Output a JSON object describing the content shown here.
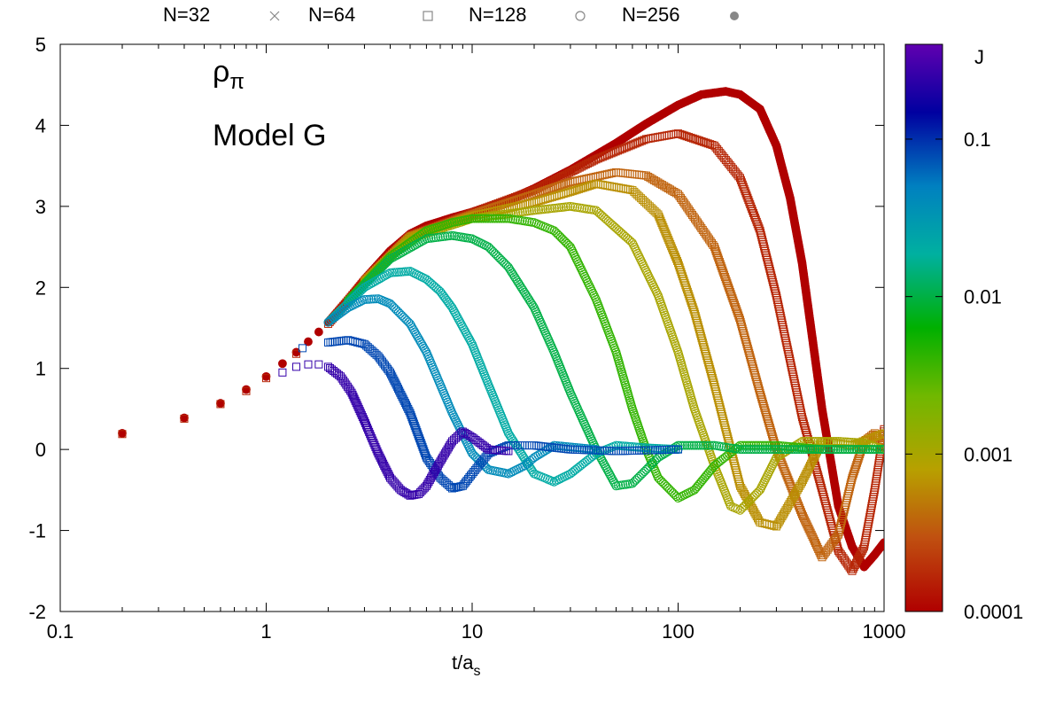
{
  "chart_data": {
    "type": "scatter",
    "title": "",
    "annotations": {
      "symbol": "ρ",
      "symbol_sub": "π",
      "model": "Model G"
    },
    "xlabel": {
      "main": "t/a",
      "sub": "s"
    },
    "ylabel": "",
    "x_scale": "log",
    "xlim": [
      0.1,
      1000
    ],
    "ylim": [
      -2,
      5
    ],
    "x_ticks": [
      {
        "value": 0.1,
        "label": "0.1"
      },
      {
        "value": 1,
        "label": "1"
      },
      {
        "value": 10,
        "label": "10"
      },
      {
        "value": 100,
        "label": "100"
      },
      {
        "value": 1000,
        "label": "1000"
      }
    ],
    "y_ticks": [
      {
        "value": -2,
        "label": "-2"
      },
      {
        "value": -1,
        "label": "-1"
      },
      {
        "value": 0,
        "label": "0"
      },
      {
        "value": 1,
        "label": "1"
      },
      {
        "value": 2,
        "label": "2"
      },
      {
        "value": 3,
        "label": "3"
      },
      {
        "value": 4,
        "label": "4"
      },
      {
        "value": 5,
        "label": "5"
      }
    ],
    "legend": {
      "placement": "top",
      "entries": [
        {
          "label": "N=32",
          "marker": "cross"
        },
        {
          "label": "N=64",
          "marker": "square"
        },
        {
          "label": "N=128",
          "marker": "circle"
        },
        {
          "label": "N=256",
          "marker": "filled-circle"
        }
      ]
    },
    "colorbar": {
      "label": "J",
      "scale": "log",
      "range": [
        0.0001,
        0.4
      ],
      "ticks": [
        {
          "value": 0.1,
          "label": "0.1"
        },
        {
          "value": 0.01,
          "label": "0.01"
        },
        {
          "value": 0.001,
          "label": "0.001"
        },
        {
          "value": 0.0001,
          "label": "0.0001"
        }
      ],
      "colormap": [
        "#b00000",
        "#c06010",
        "#b8a000",
        "#70b800",
        "#00b000",
        "#00b0a0",
        "#0080c0",
        "#0000a0",
        "#6000b0"
      ]
    },
    "series": [
      {
        "J": 0.0001,
        "marker": "filled-circle",
        "x": [
          0.2,
          0.4,
          0.6,
          0.8,
          1,
          1.2,
          1.4,
          1.6,
          1.8,
          2,
          2.5,
          3,
          4,
          5,
          6,
          8,
          10,
          15,
          20,
          30,
          50,
          70,
          100,
          130,
          170,
          200,
          250,
          300,
          350,
          400,
          500,
          600,
          700,
          800,
          900,
          1000
        ],
        "y": [
          0.2,
          0.39,
          0.57,
          0.74,
          0.9,
          1.06,
          1.2,
          1.33,
          1.45,
          1.57,
          1.85,
          2.1,
          2.45,
          2.66,
          2.76,
          2.86,
          2.93,
          3.08,
          3.22,
          3.45,
          3.78,
          4.02,
          4.25,
          4.38,
          4.42,
          4.38,
          4.2,
          3.75,
          3.1,
          2.3,
          0.5,
          -0.7,
          -1.2,
          -1.45,
          -1.3,
          -1.15
        ]
      },
      {
        "J": 0.00015,
        "marker": "square",
        "x": [
          0.2,
          0.4,
          0.6,
          0.8,
          1,
          1.4,
          2,
          3,
          5,
          10,
          20,
          40,
          70,
          100,
          150,
          200,
          250,
          300,
          400,
          500,
          600,
          700,
          800,
          900,
          1000
        ],
        "y": [
          0.19,
          0.38,
          0.56,
          0.72,
          0.88,
          1.18,
          1.55,
          2.08,
          2.64,
          2.92,
          3.2,
          3.58,
          3.83,
          3.9,
          3.75,
          3.35,
          2.7,
          1.9,
          0.4,
          -0.5,
          -1.25,
          -1.5,
          -1.2,
          -0.5,
          0.25
        ]
      },
      {
        "J": 0.0003,
        "marker": "square",
        "x": [
          3,
          5,
          10,
          20,
          30,
          50,
          70,
          100,
          150,
          200,
          250,
          300,
          400,
          500,
          600,
          700,
          800,
          900,
          1000
        ],
        "y": [
          2.08,
          2.63,
          2.9,
          3.15,
          3.3,
          3.42,
          3.38,
          3.15,
          2.5,
          1.6,
          0.7,
          0.0,
          -0.8,
          -1.33,
          -1.05,
          -0.35,
          0.1,
          0.2,
          0.05
        ]
      },
      {
        "J": 0.0006,
        "marker": "square",
        "x": [
          3,
          5,
          10,
          20,
          30,
          40,
          60,
          80,
          100,
          120,
          150,
          200,
          250,
          300,
          400,
          500,
          700,
          1000
        ],
        "y": [
          2.07,
          2.62,
          2.88,
          3.05,
          3.18,
          3.28,
          3.2,
          2.9,
          2.3,
          1.7,
          0.8,
          -0.45,
          -0.9,
          -0.95,
          -0.4,
          0.1,
          0.05,
          0.2
        ]
      },
      {
        "J": 0.001,
        "marker": "circle",
        "x": [
          3,
          5,
          10,
          20,
          30,
          40,
          60,
          80,
          100,
          120,
          150,
          180,
          200,
          250,
          300,
          400,
          600,
          800,
          1000
        ],
        "y": [
          2.06,
          2.6,
          2.85,
          2.95,
          3.0,
          2.95,
          2.55,
          1.9,
          1.2,
          0.5,
          -0.2,
          -0.7,
          -0.75,
          -0.5,
          -0.1,
          0.1,
          0.1,
          0.08,
          0.0
        ]
      },
      {
        "J": 0.004,
        "marker": "circle",
        "x": [
          2.5,
          4,
          6,
          8,
          10,
          15,
          20,
          25,
          30,
          40,
          50,
          60,
          70,
          80,
          100,
          120,
          150,
          200,
          300,
          500,
          1000
        ],
        "y": [
          1.84,
          2.38,
          2.7,
          2.8,
          2.85,
          2.85,
          2.8,
          2.7,
          2.5,
          1.85,
          1.2,
          0.5,
          0.0,
          -0.35,
          -0.6,
          -0.5,
          -0.2,
          0.05,
          0.05,
          0.0,
          0.0
        ]
      },
      {
        "J": 0.01,
        "marker": "circle",
        "x": [
          2.5,
          4,
          6,
          8,
          10,
          12,
          15,
          20,
          25,
          30,
          40,
          50,
          60,
          70,
          80,
          100,
          150,
          200,
          300,
          500,
          1000
        ],
        "y": [
          1.83,
          2.35,
          2.6,
          2.64,
          2.6,
          2.5,
          2.25,
          1.75,
          1.2,
          0.7,
          0.0,
          -0.45,
          -0.42,
          -0.25,
          -0.1,
          0.05,
          0.05,
          0.0,
          0.0,
          0.0,
          0.0
        ]
      },
      {
        "J": 0.02,
        "marker": "circle",
        "x": [
          2,
          3,
          4,
          5,
          6,
          7,
          8,
          10,
          12,
          15,
          20,
          25,
          30,
          40,
          50,
          70,
          100
        ],
        "y": [
          1.57,
          2.0,
          2.18,
          2.2,
          2.1,
          1.95,
          1.75,
          1.3,
          0.8,
          0.2,
          -0.3,
          -0.4,
          -0.3,
          -0.05,
          0.05,
          0.02,
          0.0
        ]
      },
      {
        "J": 0.04,
        "marker": "circle",
        "x": [
          2,
          2.5,
          3,
          3.5,
          4,
          5,
          6,
          7,
          8,
          10,
          12,
          15,
          18,
          20,
          25,
          30,
          40
        ],
        "y": [
          1.57,
          1.75,
          1.85,
          1.86,
          1.8,
          1.55,
          1.2,
          0.8,
          0.45,
          -0.05,
          -0.25,
          -0.3,
          -0.2,
          -0.1,
          0.05,
          0.03,
          0.0
        ]
      },
      {
        "J": 0.08,
        "marker": "square",
        "x": [
          1.5,
          2,
          2.5,
          3,
          3.5,
          4,
          5,
          6,
          7,
          8,
          9,
          10,
          12,
          15,
          20,
          30,
          50,
          100
        ],
        "y": [
          1.25,
          1.32,
          1.35,
          1.3,
          1.15,
          0.95,
          0.45,
          -0.1,
          -0.35,
          -0.48,
          -0.45,
          -0.3,
          -0.05,
          0.05,
          0.05,
          0.0,
          -0.02,
          0.0
        ]
      },
      {
        "J": 0.25,
        "marker": "square",
        "x": [
          1.2,
          1.4,
          1.6,
          1.8,
          2,
          2.3,
          2.6,
          3,
          3.5,
          4,
          4.5,
          5,
          5.5,
          6,
          7,
          8,
          9,
          10,
          12,
          15
        ],
        "y": [
          0.95,
          1.02,
          1.05,
          1.05,
          1.02,
          0.9,
          0.7,
          0.35,
          -0.05,
          -0.35,
          -0.5,
          -0.57,
          -0.55,
          -0.45,
          -0.15,
          0.1,
          0.22,
          0.15,
          0.0,
          -0.02
        ]
      }
    ]
  }
}
